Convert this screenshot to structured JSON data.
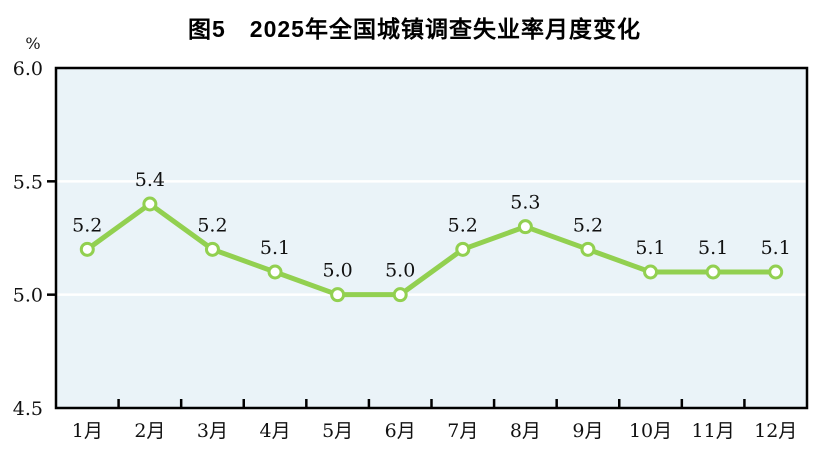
{
  "title": "图5　2025年全国城镇调查失业率月度变化",
  "chart_data": {
    "type": "line",
    "title": "图5　2025年全国城镇调查失业率月度变化",
    "categories": [
      "1月",
      "2月",
      "3月",
      "4月",
      "5月",
      "6月",
      "7月",
      "8月",
      "9月",
      "10月",
      "11月",
      "12月"
    ],
    "series": [
      {
        "name": "全国城镇调查失业率",
        "values": [
          5.2,
          5.4,
          5.2,
          5.1,
          5.0,
          5.0,
          5.2,
          5.3,
          5.2,
          5.1,
          5.1,
          5.1
        ]
      }
    ],
    "unit_label": "%",
    "xlabel": "",
    "ylabel": "%",
    "ylim": [
      4.5,
      6.0
    ],
    "yticks": [
      6.0,
      5.5,
      5.0,
      4.5
    ],
    "ytick_labels": [
      "6.0",
      "5.5",
      "5.0",
      "4.5"
    ],
    "gridlines": [
      5.5,
      5.0
    ],
    "grid_on": true,
    "legend_position": "none",
    "colors": {
      "line": "#92d050",
      "marker_fill": "#ffffff",
      "plot_background": "#eaf3f8",
      "grid": "#ffffff",
      "axis": "#000000",
      "text": "#111111"
    }
  }
}
